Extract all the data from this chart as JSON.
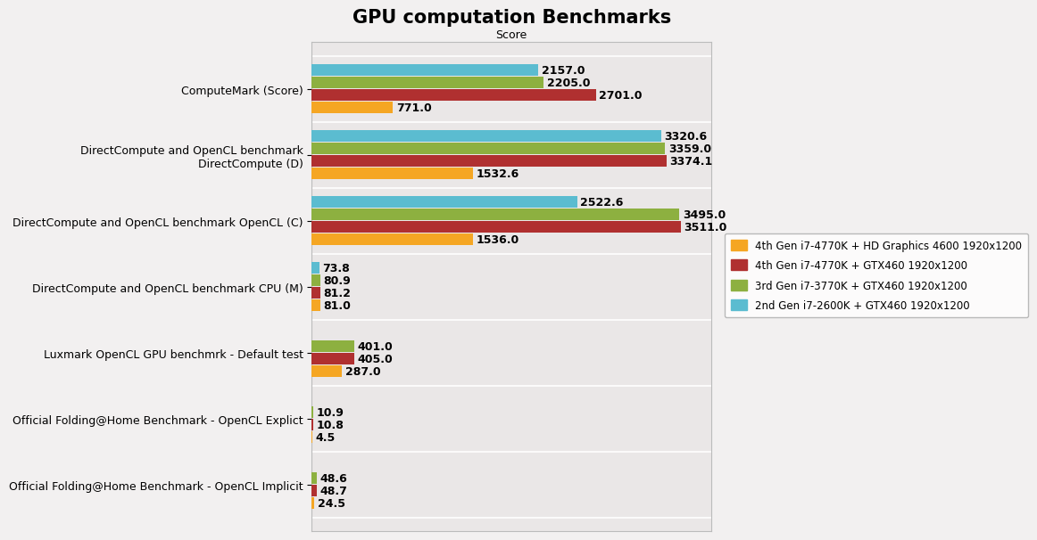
{
  "title": "GPU computation Benchmarks",
  "xlabel": "Score",
  "categories": [
    "ComputeMark (Score)",
    "DirectCompute and OpenCL benchmark\nDirectCompute (D)",
    "DirectCompute and OpenCL benchmark OpenCL (C)",
    "DirectCompute and OpenCL benchmark CPU (M)",
    "Luxmark OpenCL GPU benchmrk - Default test",
    "Official Folding@Home Benchmark - OpenCL Explict",
    "Official Folding@Home Benchmark - OpenCL Implicit"
  ],
  "series": [
    {
      "label": "4th Gen i7-4770K + HD Graphics 4600 1920x1200",
      "color": "#f5a623",
      "values": [
        771.0,
        1532.6,
        1536.0,
        81.0,
        287.0,
        4.5,
        24.5
      ]
    },
    {
      "label": "4th Gen i7-4770K + GTX460 1920x1200",
      "color": "#b03030",
      "values": [
        2701.0,
        3374.1,
        3511.0,
        81.2,
        405.0,
        10.8,
        48.7
      ]
    },
    {
      "label": "3rd Gen i7-3770K + GTX460 1920x1200",
      "color": "#8db040",
      "values": [
        2205.0,
        3359.0,
        3495.0,
        80.9,
        401.0,
        10.9,
        48.6
      ]
    },
    {
      "label": "2nd Gen i7-2600K + GTX460 1920x1200",
      "color": "#5bbcd0",
      "values": [
        2157.0,
        3320.6,
        2522.6,
        73.8,
        null,
        null,
        null
      ]
    }
  ],
  "background_color": "#f2f0f0",
  "plot_background": "#eae7e7",
  "grid_color": "#ffffff",
  "title_fontsize": 15,
  "label_fontsize": 9,
  "tick_fontsize": 9,
  "ytick_fontsize": 9,
  "bar_height": 0.17,
  "bar_gap": 0.02,
  "xlim_max": 3800
}
